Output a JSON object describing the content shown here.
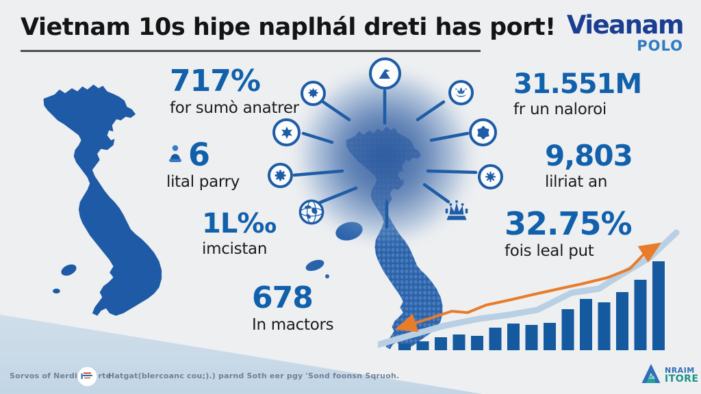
{
  "title": "Vietnam 10s hipe naplhál dreti has port!",
  "brand": {
    "name": "Vieanam",
    "subname": "POLO"
  },
  "stats_left": [
    {
      "value": "717%",
      "label": "for sumò anatrer"
    },
    {
      "value": "6",
      "label": "lital parry",
      "icon": "figure-icon"
    },
    {
      "value": "1L‰",
      "label": "imcistan"
    },
    {
      "value": "678",
      "label": "In mactors"
    }
  ],
  "stats_right": [
    {
      "value": "31.551M",
      "label": "fr un naloroi"
    },
    {
      "value": "9,803",
      "label": "lilriat an"
    },
    {
      "value": "32.75%",
      "label": "fois leal put"
    }
  ],
  "radial": {
    "center": "vietnam-map",
    "icons": [
      {
        "name": "mountain-flag-icon"
      },
      {
        "name": "splat-icon"
      },
      {
        "name": "six-point-star-icon"
      },
      {
        "name": "gear-icon"
      },
      {
        "name": "globe-icon"
      },
      {
        "name": "lotus-icon"
      },
      {
        "name": "hex-star-icon"
      },
      {
        "name": "sun-icon"
      },
      {
        "name": "crown-icon"
      }
    ]
  },
  "chart_data": {
    "type": "bar",
    "title": "",
    "xlabel": "",
    "ylabel": "",
    "axes_visible": false,
    "gridlines": false,
    "legend": null,
    "values": [
      9,
      13,
      19,
      23,
      21,
      33,
      39,
      37,
      40,
      60,
      75,
      70,
      85,
      103,
      130
    ],
    "series": [
      {
        "name": "bars",
        "type": "bar",
        "color": "#15599f",
        "values": [
          9,
          13,
          19,
          23,
          21,
          33,
          39,
          37,
          40,
          60,
          75,
          70,
          85,
          103,
          130
        ]
      },
      {
        "name": "band-line",
        "type": "line",
        "color": "#b9cfe3",
        "width": 9,
        "arrows": false,
        "points": [
          [
            0,
            171
          ],
          [
            48,
            157
          ],
          [
            98,
            143
          ],
          [
            148,
            133
          ],
          [
            193,
            127
          ],
          [
            233,
            120
          ],
          [
            283,
            95
          ],
          [
            323,
            89
          ],
          [
            353,
            70
          ],
          [
            398,
            43
          ],
          [
            436,
            7
          ]
        ]
      },
      {
        "name": "trend-arrow-line",
        "type": "line",
        "color": "#e87c2a",
        "width": 4,
        "arrows": true,
        "points": [
          [
            36,
            145
          ],
          [
            68,
            135
          ],
          [
            108,
            122
          ],
          [
            131,
            124
          ],
          [
            158,
            113
          ],
          [
            195,
            105
          ],
          [
            225,
            98
          ],
          [
            261,
            90
          ],
          [
            298,
            82
          ],
          [
            335,
            73
          ],
          [
            368,
            60
          ],
          [
            390,
            37
          ],
          [
            404,
            28
          ]
        ]
      }
    ]
  },
  "footer": {
    "source": "Sorvos of Nerdincobrte",
    "note": "Hatgat(blercoanc cou;).) parnd Soth eer pgy 'Sond foonsn Sqruoh."
  },
  "corner_logo": {
    "line1": "NRAIM",
    "line2": "ITORE"
  },
  "colors": {
    "accent_blue": "#1160ab",
    "map_blue": "#1e5aa5",
    "bar_blue": "#15599f",
    "band_blue": "#b9cfe3",
    "orange": "#e87c2a",
    "brand_dark": "#1b3e91",
    "brand_light": "#2e7bc0",
    "teal": "#1c9488",
    "wedge": "#cfdeea",
    "background": "#edeff1"
  }
}
